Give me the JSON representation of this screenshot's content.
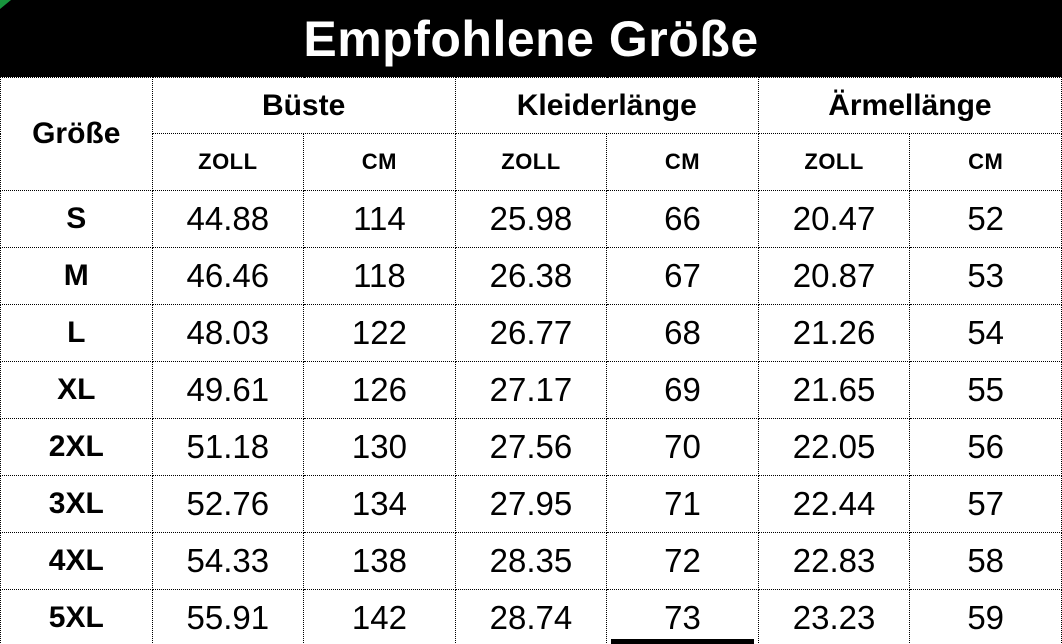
{
  "title": "Empfohlene Größe",
  "colors": {
    "title_bg": "#000000",
    "title_text": "#ffffff",
    "border": "#000000",
    "corner_flag_green": "#18953d"
  },
  "chart_data": {
    "type": "table",
    "title": "Empfohlene Größe",
    "corner_header": "Größe",
    "column_groups": [
      {
        "label": "Büste",
        "units": [
          "ZOLL",
          "CM"
        ]
      },
      {
        "label": "Kleiderlänge",
        "units": [
          "ZOLL",
          "CM"
        ]
      },
      {
        "label": "Ärmellänge",
        "units": [
          "ZOLL",
          "CM"
        ]
      }
    ],
    "rows": [
      {
        "size": "S",
        "values": [
          "44.88",
          "114",
          "25.98",
          "66",
          "20.47",
          "52"
        ]
      },
      {
        "size": "M",
        "values": [
          "46.46",
          "118",
          "26.38",
          "67",
          "20.87",
          "53"
        ]
      },
      {
        "size": "L",
        "values": [
          "48.03",
          "122",
          "26.77",
          "68",
          "21.26",
          "54"
        ]
      },
      {
        "size": "XL",
        "values": [
          "49.61",
          "126",
          "27.17",
          "69",
          "21.65",
          "55"
        ]
      },
      {
        "size": "2XL",
        "values": [
          "51.18",
          "130",
          "27.56",
          "70",
          "22.05",
          "56"
        ]
      },
      {
        "size": "3XL",
        "values": [
          "52.76",
          "134",
          "27.95",
          "71",
          "22.44",
          "57"
        ]
      },
      {
        "size": "4XL",
        "values": [
          "54.33",
          "138",
          "28.35",
          "72",
          "22.83",
          "58"
        ]
      },
      {
        "size": "5XL",
        "values": [
          "55.91",
          "142",
          "28.74",
          "73",
          "23.23",
          "59"
        ]
      }
    ]
  }
}
